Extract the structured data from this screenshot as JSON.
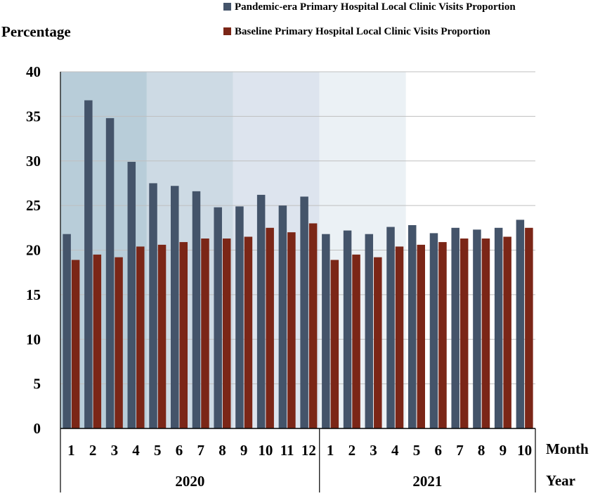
{
  "chart_data": {
    "type": "bar",
    "title": "",
    "ylabel": "Percentage",
    "xlabel_month": "Month",
    "xlabel_year": "Year",
    "ylim": [
      0,
      40
    ],
    "yticks": [
      "0",
      "5",
      "10",
      "15",
      "20",
      "25",
      "30",
      "35",
      "40"
    ],
    "grid": true,
    "legend_position": "top",
    "categories": [
      "1",
      "2",
      "3",
      "4",
      "5",
      "6",
      "7",
      "8",
      "9",
      "10",
      "11",
      "12",
      "1",
      "2",
      "3",
      "4",
      "5",
      "6",
      "7",
      "8",
      "9",
      "10"
    ],
    "groups": [
      {
        "label": "2020",
        "count": 12
      },
      {
        "label": "2021",
        "count": 10
      }
    ],
    "series": [
      {
        "name": "Pandemic-era Primary Hospital Local Clinic Visits Proportion",
        "color": "#44546a",
        "values": [
          21.8,
          36.8,
          34.8,
          29.9,
          27.5,
          27.2,
          26.6,
          24.8,
          24.9,
          26.2,
          25.0,
          26.0,
          21.8,
          22.2,
          21.8,
          22.6,
          22.8,
          21.9,
          22.5,
          22.3,
          22.5,
          23.4
        ]
      },
      {
        "name": "Baseline Primary Hospital Local Clinic Visits Proportion",
        "color": "#7b2617",
        "values": [
          18.9,
          19.5,
          19.2,
          20.4,
          20.6,
          20.9,
          21.3,
          21.3,
          21.5,
          22.5,
          22.0,
          23.0,
          18.9,
          19.5,
          19.2,
          20.4,
          20.6,
          20.9,
          21.3,
          21.3,
          21.5,
          22.5
        ]
      }
    ],
    "background_bands": [
      {
        "from": 0,
        "to": 4,
        "color": "#b8cdd9"
      },
      {
        "from": 4,
        "to": 8,
        "color": "#cddae4"
      },
      {
        "from": 8,
        "to": 12,
        "color": "#dde4ee"
      },
      {
        "from": 12,
        "to": 16,
        "color": "#ebf1f5"
      }
    ]
  }
}
